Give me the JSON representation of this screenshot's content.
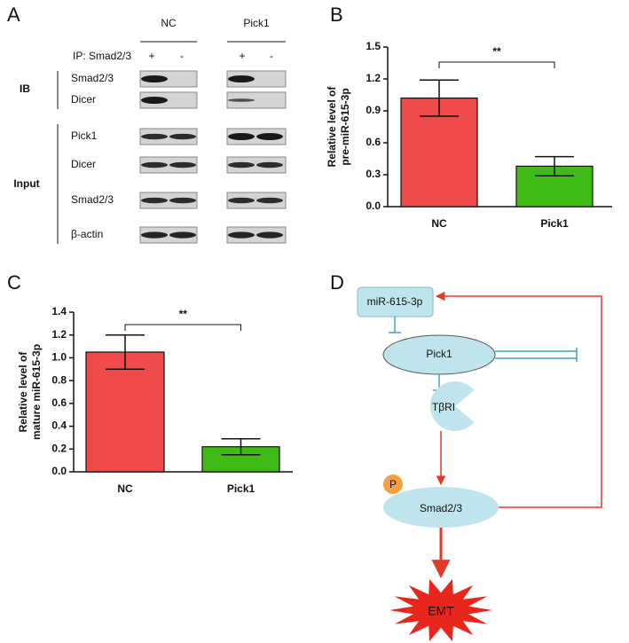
{
  "panels": [
    "A",
    "B",
    "C",
    "D"
  ],
  "blot": {
    "groups": [
      "NC",
      "Pick1"
    ],
    "ip": "IP: Smad2/3",
    "signs": [
      "+",
      "-",
      "+",
      "-"
    ],
    "sections": [
      {
        "label": "IB",
        "rows": [
          "Smad2/3",
          "Dicer"
        ]
      },
      {
        "label": "Input",
        "rows": [
          "Pick1",
          "Dicer",
          "Smad2/3",
          "β-actin"
        ]
      }
    ]
  },
  "chart_data": [
    {
      "type": "bar",
      "ylabel": [
        "Relative level of",
        "pre-miR-615-3p"
      ],
      "categories": [
        "NC",
        "Pick1"
      ],
      "values": [
        1.02,
        0.38
      ],
      "errors": [
        0.17,
        0.09
      ],
      "colors": [
        "#ef4b4b",
        "#3fba17"
      ],
      "annotation": "**",
      "ylim": [
        0,
        1.5
      ],
      "yticks": [
        {
          "value": 0,
          "label": "0.0"
        },
        0.3,
        0.6,
        0.9,
        1.2,
        1.5
      ]
    },
    {
      "type": "bar",
      "ylabel": [
        "Relative level of",
        "mature miR-615-3p"
      ],
      "categories": [
        "NC",
        "Pick1"
      ],
      "values": [
        1.05,
        0.22
      ],
      "errors": [
        0.15,
        0.07
      ],
      "colors": [
        "#ef4b4b",
        "#3fba17"
      ],
      "annotation": "**",
      "ylim": [
        0,
        1.4
      ],
      "yticks": [
        {
          "value": 0,
          "label": "0.0"
        },
        0.2,
        0.4,
        0.6,
        0.8,
        {
          "value": 1,
          "label": "1.0"
        },
        1.2,
        1.4
      ]
    }
  ],
  "diagram": {
    "nodes": [
      "miR-615-3p",
      "Pick1",
      "TβRI",
      "P",
      "Smad2/3",
      "EMT"
    ]
  }
}
